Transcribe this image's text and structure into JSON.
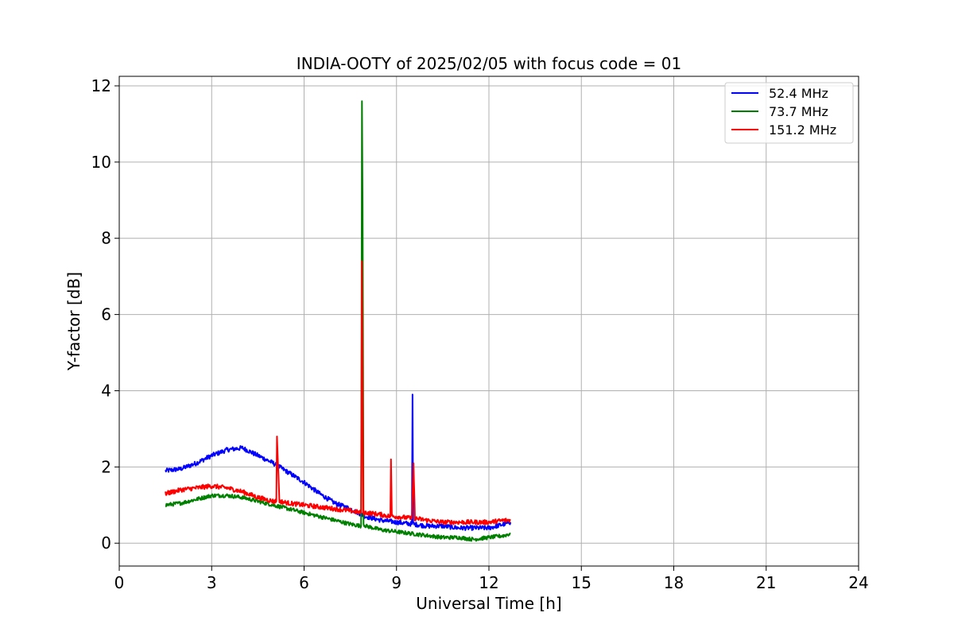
{
  "chart_data": {
    "type": "line",
    "title": "INDIA-OOTY of 2025/02/05 with focus code = 01",
    "xlabel": "Universal Time [h]",
    "ylabel": "Y-factor [dB]",
    "xlim": [
      0,
      24
    ],
    "ylim": [
      -0.6,
      12.25
    ],
    "xticks": [
      0,
      3,
      6,
      9,
      12,
      15,
      18,
      21,
      24
    ],
    "xtick_labels": [
      "0",
      "3",
      "6",
      "9",
      "12",
      "15",
      "18",
      "21",
      "24"
    ],
    "yticks": [
      0,
      2,
      4,
      6,
      8,
      10,
      12
    ],
    "ytick_labels": [
      "0",
      "2",
      "4",
      "6",
      "8",
      "10",
      "12"
    ],
    "grid": true,
    "legend_position": "top-right",
    "series": [
      {
        "name": "52.4 MHz",
        "color": "#0000ff",
        "x": [
          1.5,
          2.0,
          2.5,
          3.0,
          3.5,
          4.0,
          4.5,
          5.0,
          5.5,
          6.0,
          6.5,
          7.0,
          7.5,
          8.0,
          8.5,
          9.0,
          9.5,
          9.52,
          9.54,
          10.0,
          10.5,
          11.0,
          11.5,
          12.0,
          12.5,
          12.7
        ],
        "values": [
          1.9,
          1.95,
          2.1,
          2.3,
          2.45,
          2.5,
          2.3,
          2.1,
          1.85,
          1.6,
          1.3,
          1.05,
          0.9,
          0.7,
          0.6,
          0.55,
          0.5,
          3.9,
          0.5,
          0.45,
          0.45,
          0.4,
          0.4,
          0.4,
          0.5,
          0.55
        ],
        "noise": 0.06
      },
      {
        "name": "73.7 MHz",
        "color": "#008000",
        "x": [
          1.5,
          2.0,
          2.5,
          3.0,
          3.5,
          4.0,
          4.5,
          5.0,
          5.5,
          6.0,
          6.5,
          7.0,
          7.5,
          7.85,
          7.88,
          7.9,
          7.93,
          8.0,
          8.5,
          9.0,
          9.5,
          10.0,
          10.5,
          11.0,
          11.5,
          12.0,
          12.5,
          12.7
        ],
        "values": [
          1.0,
          1.05,
          1.15,
          1.25,
          1.25,
          1.2,
          1.1,
          1.0,
          0.9,
          0.8,
          0.7,
          0.6,
          0.5,
          0.45,
          11.6,
          8.8,
          0.5,
          0.45,
          0.35,
          0.3,
          0.25,
          0.2,
          0.15,
          0.15,
          0.1,
          0.15,
          0.2,
          0.25
        ],
        "noise": 0.05
      },
      {
        "name": "151.2 MHz",
        "color": "#ff0000",
        "x": [
          1.5,
          2.0,
          2.5,
          3.0,
          3.5,
          4.0,
          4.5,
          5.0,
          5.1,
          5.12,
          5.2,
          5.5,
          6.0,
          6.5,
          7.0,
          7.5,
          7.85,
          7.88,
          7.92,
          8.0,
          8.5,
          8.8,
          8.82,
          8.85,
          9.0,
          9.5,
          9.55,
          9.6,
          10.0,
          10.5,
          11.0,
          11.5,
          12.0,
          12.5,
          12.7
        ],
        "values": [
          1.3,
          1.4,
          1.45,
          1.5,
          1.45,
          1.35,
          1.2,
          1.1,
          1.1,
          2.8,
          1.1,
          1.05,
          1.0,
          0.95,
          0.9,
          0.85,
          0.8,
          7.4,
          0.8,
          0.8,
          0.75,
          0.7,
          2.2,
          0.7,
          0.7,
          0.65,
          2.1,
          0.65,
          0.6,
          0.55,
          0.55,
          0.55,
          0.55,
          0.6,
          0.6
        ],
        "noise": 0.06
      }
    ]
  }
}
